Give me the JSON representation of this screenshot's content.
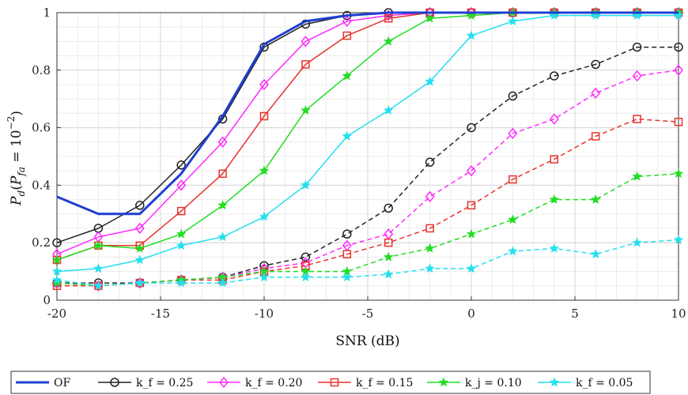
{
  "chart_data": {
    "type": "line",
    "xlabel": "SNR (dB)",
    "ylabel": "P_d(P_fa = 10^-2)",
    "xlim": [
      -20,
      10
    ],
    "ylim": [
      0,
      1
    ],
    "xticks": [
      -20,
      -15,
      -10,
      -5,
      0,
      5,
      10
    ],
    "yticks": [
      0,
      0.2,
      0.4,
      0.6,
      0.8,
      1
    ],
    "ytick_labels": [
      "0",
      "0.2",
      "0.4",
      "0.6",
      "0.8",
      "1"
    ],
    "grid": true,
    "legend_position": "bottom, outside plot area",
    "x": [
      -20,
      -18,
      -16,
      -14,
      -12,
      -10,
      -8,
      -6,
      -4,
      -2,
      0,
      2,
      4,
      6,
      8,
      10
    ],
    "legend": [
      {
        "label": "OF",
        "color": "#1f3fd1",
        "marker": "none",
        "key": "OF"
      },
      {
        "label": "k_f = 0.25",
        "color": "#222222",
        "marker": "circle",
        "key": "k25"
      },
      {
        "label": "k_f = 0.20",
        "color": "#ff2bff",
        "marker": "diamond",
        "key": "k20"
      },
      {
        "label": "k_f = 0.15",
        "color": "#e8332d",
        "marker": "square",
        "key": "k15"
      },
      {
        "label": "k_j = 0.10",
        "color": "#22dd22",
        "marker": "star",
        "key": "k10"
      },
      {
        "label": "k_f = 0.05",
        "color": "#22e0ee",
        "marker": "star",
        "key": "k05"
      }
    ],
    "series": [
      {
        "key": "OF",
        "color": "#1f3fd1",
        "style": "solid",
        "marker": "none",
        "width": 3,
        "values": [
          0.36,
          0.3,
          0.3,
          0.44,
          0.64,
          0.89,
          0.97,
          0.99,
          1.0,
          1.0,
          1.0,
          1.0,
          1.0,
          1.0,
          1.0,
          1.0
        ]
      },
      {
        "key": "k25",
        "color": "#222222",
        "style": "solid",
        "marker": "circle",
        "values": [
          0.2,
          0.25,
          0.33,
          0.47,
          0.63,
          0.88,
          0.96,
          0.99,
          1.0,
          1.0,
          1.0,
          1.0,
          1.0,
          1.0,
          1.0,
          1.0
        ]
      },
      {
        "key": "k20",
        "color": "#ff2bff",
        "style": "solid",
        "marker": "diamond",
        "values": [
          0.16,
          0.22,
          0.25,
          0.4,
          0.55,
          0.75,
          0.9,
          0.97,
          0.99,
          1.0,
          1.0,
          1.0,
          1.0,
          1.0,
          1.0,
          1.0
        ]
      },
      {
        "key": "k15",
        "color": "#e8332d",
        "style": "solid",
        "marker": "square",
        "values": [
          0.14,
          0.19,
          0.19,
          0.31,
          0.44,
          0.64,
          0.82,
          0.92,
          0.98,
          1.0,
          1.0,
          1.0,
          1.0,
          1.0,
          1.0,
          1.0
        ]
      },
      {
        "key": "k10",
        "color": "#22dd22",
        "style": "solid",
        "marker": "star",
        "values": [
          0.14,
          0.19,
          0.18,
          0.23,
          0.33,
          0.45,
          0.66,
          0.78,
          0.9,
          0.98,
          0.99,
          1.0,
          1.0,
          1.0,
          1.0,
          1.0
        ]
      },
      {
        "key": "k05",
        "color": "#22e0ee",
        "style": "solid",
        "marker": "star",
        "values": [
          0.1,
          0.11,
          0.14,
          0.19,
          0.22,
          0.29,
          0.4,
          0.57,
          0.66,
          0.76,
          0.92,
          0.97,
          0.99,
          0.99,
          0.99,
          0.99
        ]
      },
      {
        "key": "k25-dashed",
        "color": "#222222",
        "style": "dashed",
        "marker": "circle",
        "values": [
          0.06,
          0.06,
          0.06,
          0.07,
          0.08,
          0.12,
          0.15,
          0.23,
          0.32,
          0.48,
          0.6,
          0.71,
          0.78,
          0.82,
          0.88,
          0.88
        ]
      },
      {
        "key": "k20-dashed",
        "color": "#ff2bff",
        "style": "dashed",
        "marker": "diamond",
        "values": [
          0.06,
          0.05,
          0.06,
          0.07,
          0.08,
          0.11,
          0.13,
          0.19,
          0.23,
          0.36,
          0.45,
          0.58,
          0.63,
          0.72,
          0.78,
          0.8
        ]
      },
      {
        "key": "k15-dashed",
        "color": "#e8332d",
        "style": "dashed",
        "marker": "square",
        "values": [
          0.05,
          0.05,
          0.06,
          0.07,
          0.07,
          0.1,
          0.12,
          0.16,
          0.2,
          0.25,
          0.33,
          0.42,
          0.49,
          0.57,
          0.63,
          0.62
        ]
      },
      {
        "key": "k10-dashed",
        "color": "#22dd22",
        "style": "dashed",
        "marker": "star",
        "values": [
          0.06,
          0.05,
          0.06,
          0.07,
          0.08,
          0.1,
          0.1,
          0.1,
          0.15,
          0.18,
          0.23,
          0.28,
          0.35,
          0.35,
          0.43,
          0.44
        ]
      },
      {
        "key": "k05-dashed",
        "color": "#22e0ee",
        "style": "dashed",
        "marker": "star",
        "values": [
          0.07,
          0.05,
          0.06,
          0.06,
          0.06,
          0.08,
          0.08,
          0.08,
          0.09,
          0.11,
          0.11,
          0.17,
          0.18,
          0.16,
          0.2,
          0.21
        ]
      }
    ]
  }
}
